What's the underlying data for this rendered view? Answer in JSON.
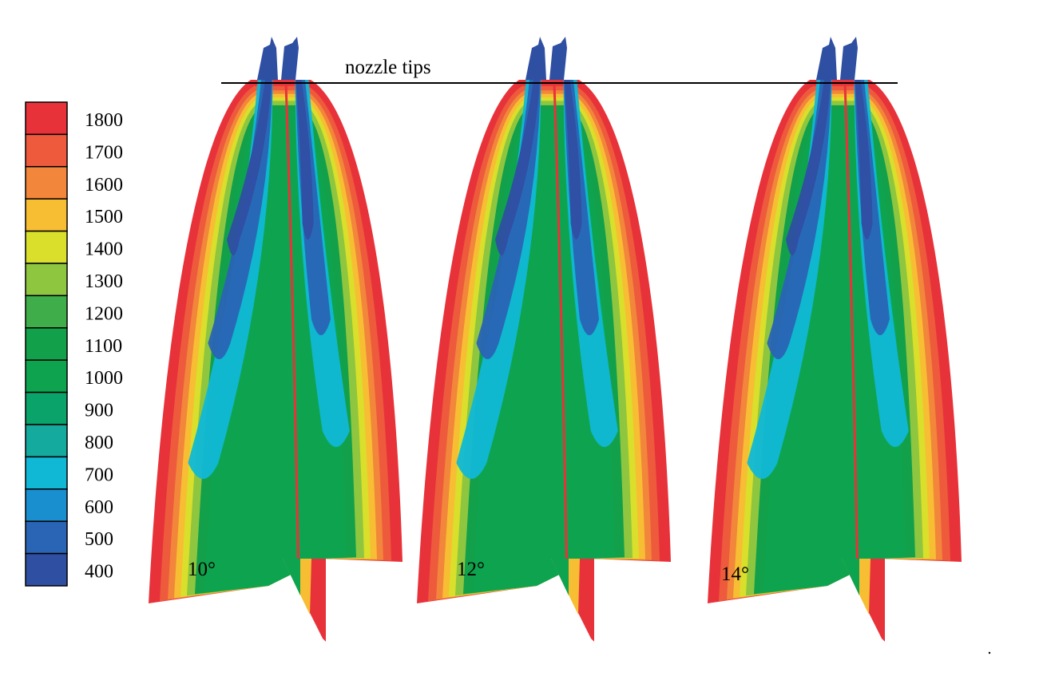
{
  "figure": {
    "annotation": "nozzle tips"
  },
  "colorbar": {
    "ticks": [
      "1800",
      "1700",
      "1600",
      "1500",
      "1400",
      "1300",
      "1200",
      "1100",
      "1000",
      "900",
      "800",
      "700",
      "600",
      "500",
      "400"
    ],
    "colors": [
      "#e8323a",
      "#ee5a3c",
      "#f2863a",
      "#f7be33",
      "#d9df2b",
      "#8ec63f",
      "#3fae4a",
      "#13a04a",
      "#0ea44f",
      "#0aa36a",
      "#14ab9e",
      "#10b8d6",
      "#1a8fd0",
      "#2a64b5",
      "#2f4fa2"
    ]
  },
  "panels": [
    {
      "angle_label": "10°"
    },
    {
      "angle_label": "12°"
    },
    {
      "angle_label": "14°"
    }
  ],
  "palette": {
    "outer": "#e8323a",
    "red2": "#ee5a3c",
    "orange": "#f2863a",
    "yellow": "#f7be33",
    "lime": "#d9df2b",
    "lightgreen": "#8ec63f",
    "green": "#13a04a",
    "core": "#0ea44f",
    "cyan": "#10b8d6",
    "blue": "#2a64b5",
    "darkblue": "#2f4fa2"
  }
}
